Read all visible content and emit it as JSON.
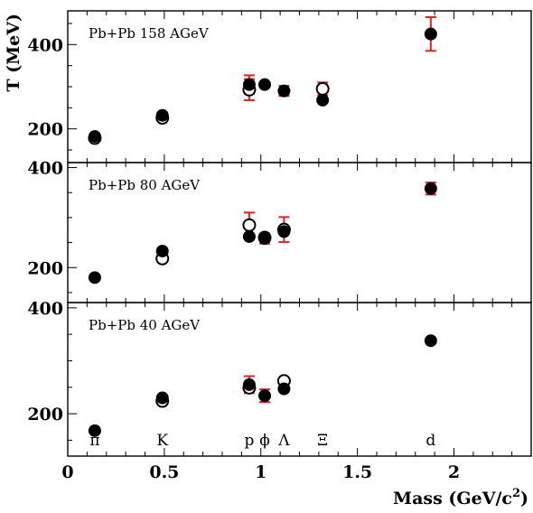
{
  "chart_data": {
    "type": "scatter",
    "xlabel": "Mass (GeV/c",
    "xlabel_sup": "2",
    "xlabel_end": ")",
    "ylabel": "T (MeV)",
    "xlim": [
      0,
      2.4
    ],
    "x_ticks": [
      {
        "value": 0,
        "label": "0"
      },
      {
        "value": 0.5,
        "label": "0.5"
      },
      {
        "value": 1,
        "label": "1"
      },
      {
        "value": 1.5,
        "label": "1.5"
      },
      {
        "value": 2,
        "label": "2"
      }
    ],
    "particle_labels": [
      {
        "label": "π",
        "x": 0.14
      },
      {
        "label": "K",
        "x": 0.49
      },
      {
        "label": "p",
        "x": 0.94
      },
      {
        "label": "ϕ",
        "x": 1.02
      },
      {
        "label": "Λ",
        "x": 1.12
      },
      {
        "label": "Ξ",
        "x": 1.32
      },
      {
        "label": "d",
        "x": 1.88
      }
    ],
    "panels": [
      {
        "title": "Pb+Pb 158 AGeV",
        "ylim": [
          120,
          480
        ],
        "y_ticks": [
          {
            "value": 200,
            "label": "200"
          },
          {
            "value": 400,
            "label": "400"
          }
        ],
        "filled": [
          {
            "x": 0.14,
            "y": 182
          },
          {
            "x": 0.49,
            "y": 232
          },
          {
            "x": 0.94,
            "y": 305,
            "err": 22
          },
          {
            "x": 1.02,
            "y": 305
          },
          {
            "x": 1.12,
            "y": 290,
            "err": 12
          },
          {
            "x": 1.32,
            "y": 268
          },
          {
            "x": 1.88,
            "y": 425,
            "err": 40
          }
        ],
        "open": [
          {
            "x": 0.14,
            "y": 178
          },
          {
            "x": 0.49,
            "y": 226
          },
          {
            "x": 0.94,
            "y": 293,
            "err": 25
          },
          {
            "x": 1.32,
            "y": 295,
            "err": 15
          }
        ]
      },
      {
        "title": "Pb+Pb 80 AGeV",
        "ylim": [
          130,
          410
        ],
        "y_ticks": [
          {
            "value": 200,
            "label": "200"
          },
          {
            "value": 400,
            "label": "400"
          }
        ],
        "filled": [
          {
            "x": 0.14,
            "y": 180
          },
          {
            "x": 0.49,
            "y": 233
          },
          {
            "x": 0.94,
            "y": 262
          },
          {
            "x": 1.02,
            "y": 258,
            "err": 10
          },
          {
            "x": 1.12,
            "y": 272
          },
          {
            "x": 1.88,
            "y": 358,
            "err": 12
          }
        ],
        "open": [
          {
            "x": 0.49,
            "y": 218
          },
          {
            "x": 0.94,
            "y": 285,
            "err": 25
          },
          {
            "x": 1.02,
            "y": 260
          },
          {
            "x": 1.12,
            "y": 276,
            "err": 25
          }
        ]
      },
      {
        "title": "Pb+Pb 40 AGeV",
        "ylim": [
          120,
          410
        ],
        "y_ticks": [
          {
            "value": 200,
            "label": "200"
          },
          {
            "value": 400,
            "label": "400"
          }
        ],
        "filled": [
          {
            "x": 0.14,
            "y": 168
          },
          {
            "x": 0.49,
            "y": 230
          },
          {
            "x": 0.94,
            "y": 255,
            "err": 16
          },
          {
            "x": 1.02,
            "y": 234,
            "err": 12
          },
          {
            "x": 1.12,
            "y": 247
          },
          {
            "x": 1.88,
            "y": 338
          }
        ],
        "open": [
          {
            "x": 0.49,
            "y": 224
          },
          {
            "x": 0.94,
            "y": 249
          },
          {
            "x": 1.12,
            "y": 262
          }
        ]
      }
    ],
    "colors": {
      "error_bar": "#dd2222",
      "marker": "#000000"
    }
  }
}
